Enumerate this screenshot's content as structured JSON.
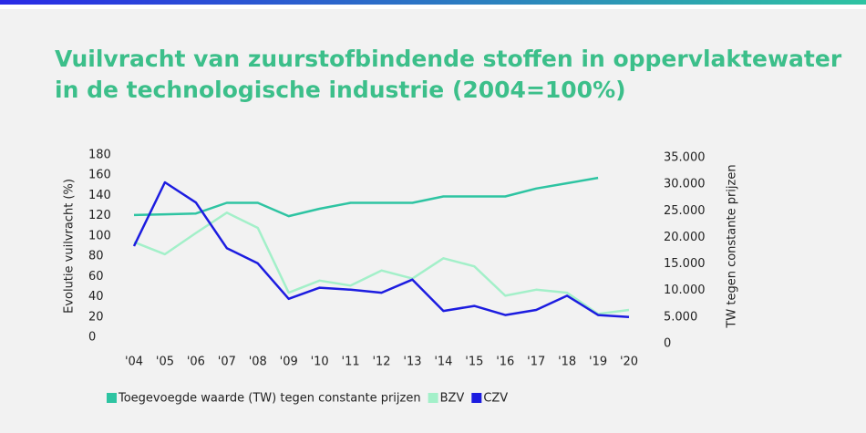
{
  "chart_data": {
    "type": "line",
    "title": [
      "Vuilvracht van zuurstofbindende stoffen in oppervlaktewater",
      "in de technologische industrie (2004=100%)"
    ],
    "y_label": "Evolutie vuilvracht (%)",
    "y2_label": "TW tegen constante prijzen",
    "categories": [
      "'04",
      "'05",
      "'06",
      "'07",
      "'08",
      "'09",
      "'10",
      "'11",
      "'12",
      "'13",
      "'14",
      "'15",
      "'16",
      "'17",
      "'18",
      "'19",
      "'20"
    ],
    "ylim": [
      0,
      180
    ],
    "yticks": [
      0,
      20,
      40,
      60,
      80,
      100,
      120,
      140,
      160,
      180
    ],
    "y2lim": [
      0,
      35000
    ],
    "y2ticks": [
      0,
      {
        "value": 5000,
        "label": "5.000"
      },
      {
        "value": 10000,
        "label": "10.000"
      },
      {
        "value": 15000,
        "label": "15.000"
      },
      {
        "value": 20000,
        "label": "20.000"
      },
      {
        "value": 25000,
        "label": "25.000"
      },
      {
        "value": 30000,
        "label": "30.000"
      },
      {
        "value": 35000,
        "label": "35.000"
      }
    ],
    "grid": false,
    "legend": "bottom",
    "series": [
      {
        "name": "Toegevoegde waarde (TW) tegen constante prijzen",
        "color": "#2ec4a2",
        "axis": "y2",
        "values": [
          24200,
          24350,
          24500,
          26500,
          26500,
          24000,
          25400,
          26500,
          26500,
          26500,
          27700,
          27700,
          27700,
          29200,
          30200,
          31200,
          null
        ]
      },
      {
        "name": "BZV",
        "color": "#a3f0c9",
        "values": [
          94,
          82,
          103,
          123,
          108,
          44,
          56,
          51,
          66,
          58,
          78,
          70,
          41,
          47,
          44,
          23,
          27
        ]
      },
      {
        "name": "CZV",
        "color": "#1c1ce0",
        "values": [
          90,
          153,
          133,
          88,
          73,
          38,
          49,
          47,
          44,
          57,
          26,
          31,
          22,
          27,
          41,
          22,
          20
        ]
      }
    ]
  }
}
